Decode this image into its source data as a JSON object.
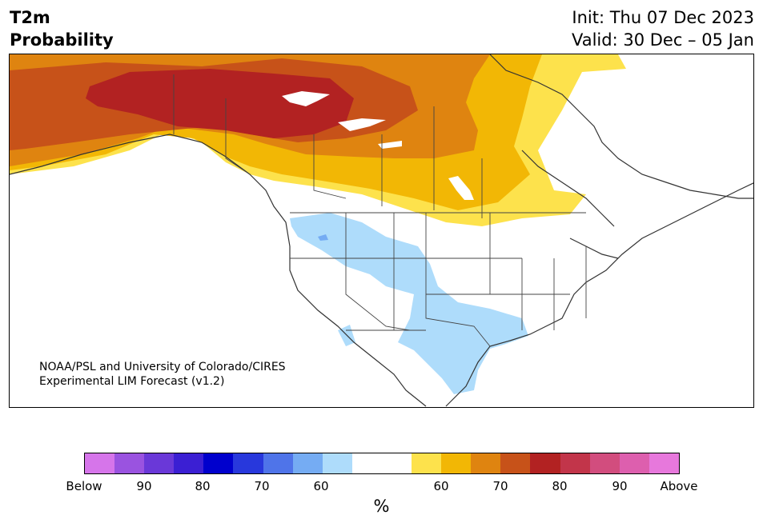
{
  "header": {
    "title_line1": "T2m",
    "title_line2": "Probability",
    "init_text": "Init: Thu 07 Dec 2023",
    "valid_text": "Valid: 30 Dec – 05 Jan"
  },
  "map": {
    "credit_line1": "NOAA/PSL and University of Colorado/CIRES",
    "credit_line2": "Experimental LIM Forecast (v1.2)",
    "regions": [
      {
        "name": "above-60-band",
        "color": "#fde24c"
      },
      {
        "name": "above-60-65",
        "color": "#f2b705"
      },
      {
        "name": "above-65-70",
        "color": "#df8410"
      },
      {
        "name": "above-70-75",
        "color": "#c75219"
      },
      {
        "name": "above-75-80",
        "color": "#b22222"
      },
      {
        "name": "below-60-west",
        "color": "#aedcfb"
      }
    ]
  },
  "colorbar": {
    "colors": [
      "#d675ea",
      "#9a53e0",
      "#6a38d8",
      "#3b1fd3",
      "#0000cd",
      "#2838dc",
      "#4f74e9",
      "#75acf3",
      "#aedcfb",
      "#ffffff",
      "#ffffff",
      "#fde24c",
      "#f2b705",
      "#df8410",
      "#c75219",
      "#b22222",
      "#c2354a",
      "#d24d7e",
      "#dd5fae",
      "#e778dc"
    ],
    "ticks": [
      "Below",
      "90",
      "80",
      "70",
      "60",
      "60",
      "70",
      "80",
      "90",
      "Above"
    ],
    "unit": "%"
  }
}
